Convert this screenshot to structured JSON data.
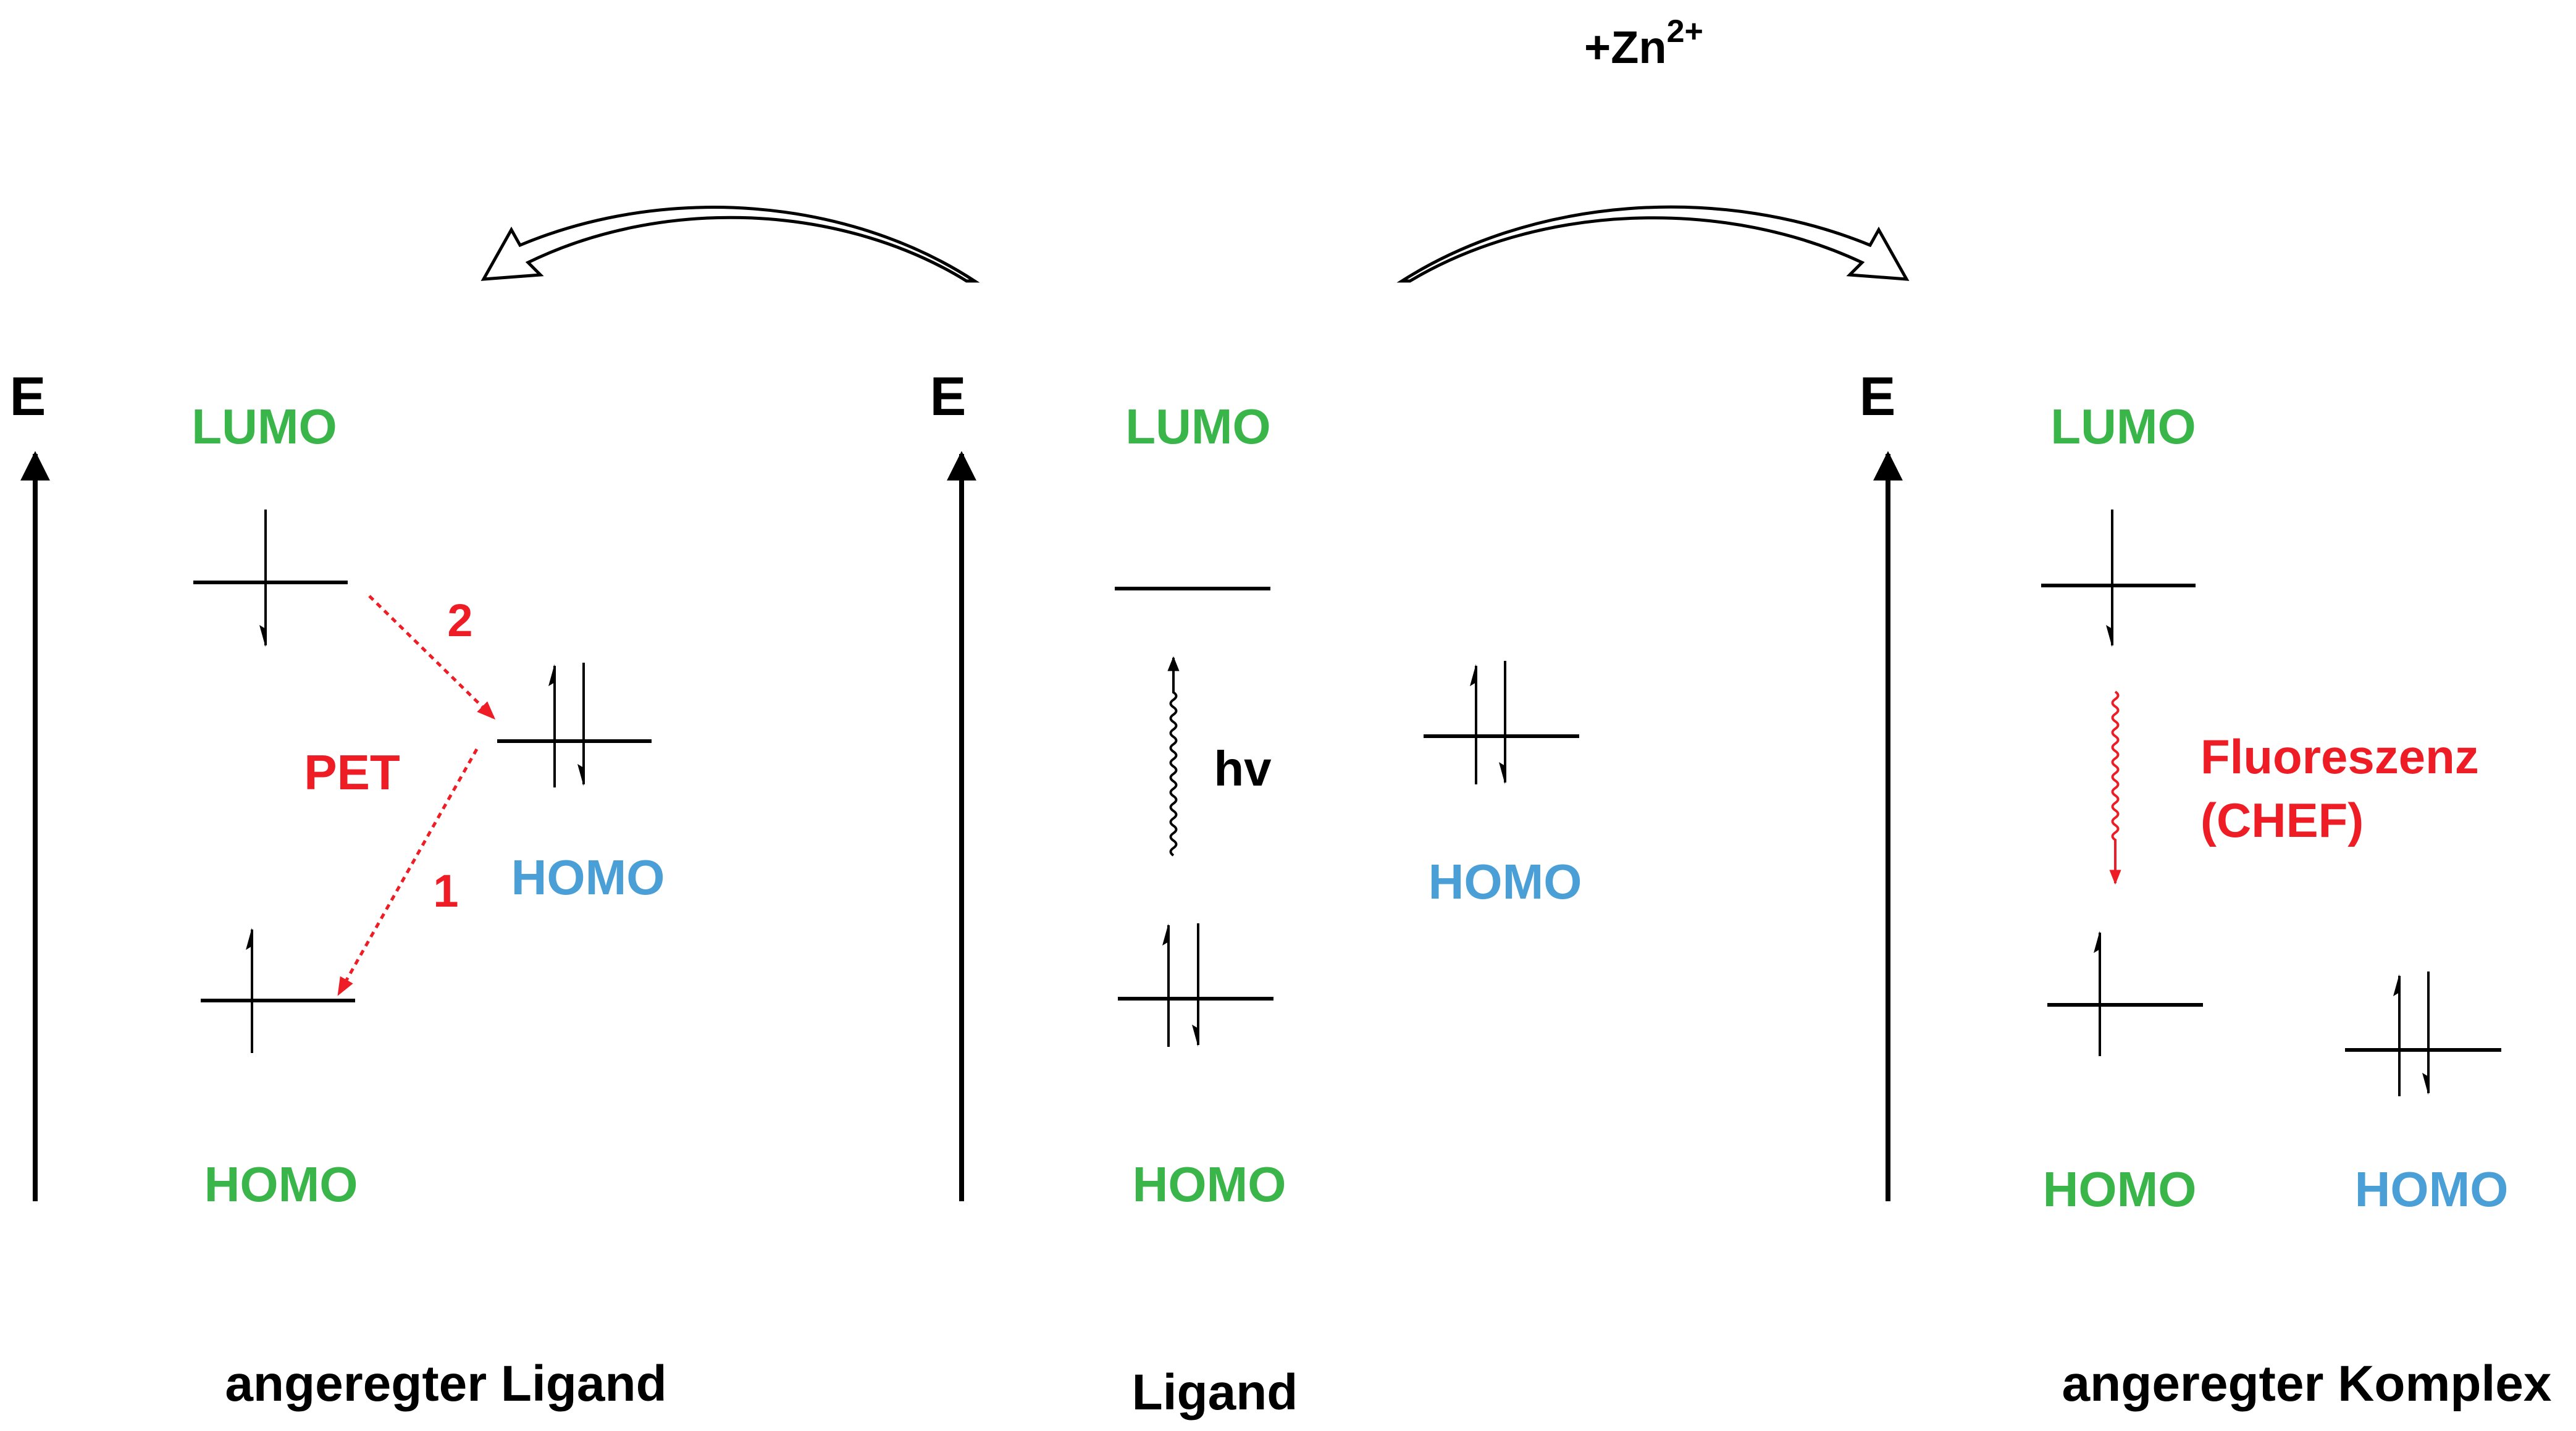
{
  "reaction_label": {
    "prefix": "+Zn",
    "superscript": "2+"
  },
  "colors": {
    "ligand_orbital": "#3ab54a",
    "metal_orbital": "#4a9fd7",
    "process": "#ee1c25",
    "ink": "#000000"
  },
  "panels": [
    {
      "id": "excited-ligand",
      "energy_axis_label": "E",
      "ligand_lumo_label": "LUMO",
      "ligand_homo_label": "HOMO",
      "metal_homo_label": "HOMO",
      "process_label": "PET",
      "step_labels": [
        "2",
        "1"
      ],
      "caption": "angeregter Ligand"
    },
    {
      "id": "ligand",
      "energy_axis_label": "E",
      "ligand_lumo_label": "LUMO",
      "ligand_homo_label": "HOMO",
      "metal_homo_label": "HOMO",
      "excitation_label": "hv",
      "caption": "Ligand"
    },
    {
      "id": "excited-complex",
      "energy_axis_label": "E",
      "ligand_lumo_label": "LUMO",
      "ligand_homo_label": "HOMO",
      "metal_homo_label": "HOMO",
      "process_label_lines": [
        "Fluoreszenz",
        "(CHEF)"
      ],
      "caption": "angeregter Komplex"
    }
  ]
}
